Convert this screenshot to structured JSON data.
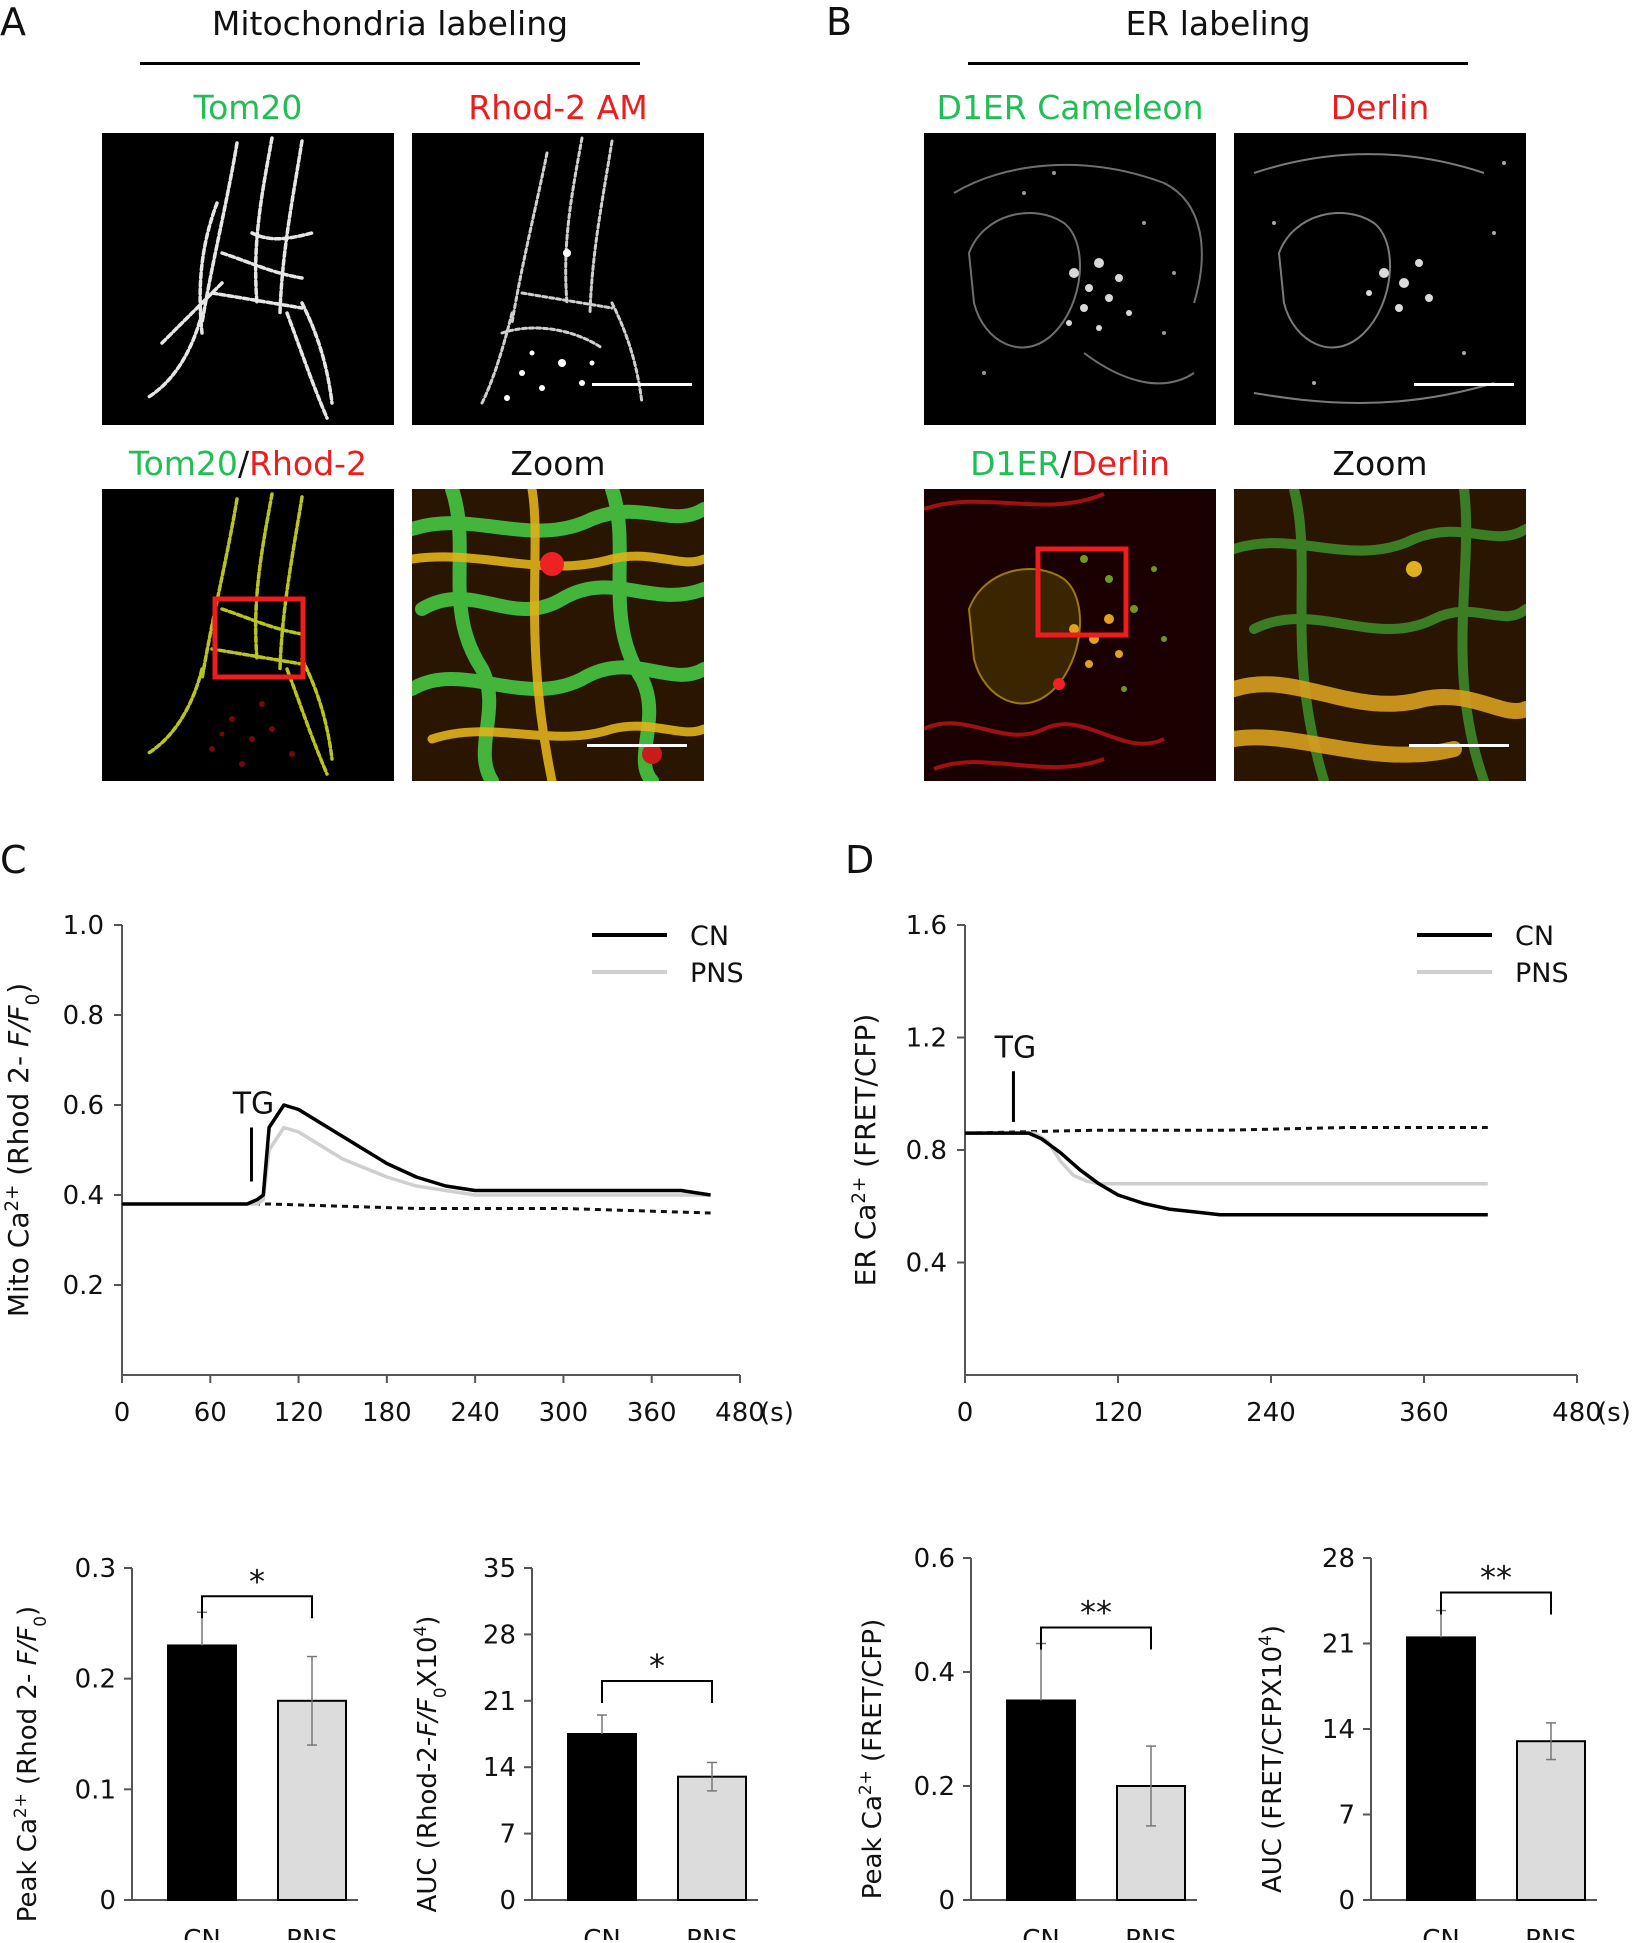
{
  "panel_A": {
    "letter": "A",
    "header": "Mitochondria labeling",
    "labels": {
      "tom20": "Tom20",
      "rhod2am": "Rhod-2 AM",
      "merge_green": "Tom20",
      "merge_sep": "/",
      "merge_red": "Rhod-2",
      "zoom": "Zoom"
    }
  },
  "panel_B": {
    "letter": "B",
    "header": "ER labeling",
    "labels": {
      "d1er": "D1ER Cameleon",
      "derlin": "Derlin",
      "merge_green": "D1ER",
      "merge_sep": "/",
      "merge_red": "Derlin",
      "zoom": "Zoom"
    }
  },
  "panel_C": {
    "letter": "C"
  },
  "panel_D": {
    "letter": "D"
  },
  "colors": {
    "green": "#1fbf55",
    "red": "#ee1c1c",
    "cn": "#000000",
    "pns": "#cfcfcf",
    "pns_bar": "#dcdcdc"
  },
  "chart_data": [
    {
      "id": "C-line",
      "type": "line",
      "ylabel": "Mito Ca2+ (Rhod 2- F/F0)",
      "xunit": "(s)",
      "xticks": [
        "0",
        "60",
        "120",
        "180",
        "240",
        "300",
        "360",
        "480"
      ],
      "yticks": [
        "0.2",
        "0.4",
        "0.6",
        "0.8",
        "1.0"
      ],
      "xlim": [
        0,
        420
      ],
      "ylim": [
        0,
        1.0
      ],
      "annotation": "TG",
      "legend": [
        "CN",
        "PNS"
      ],
      "series": [
        {
          "name": "CN",
          "x": [
            0,
            75,
            85,
            92,
            96,
            100,
            110,
            120,
            135,
            150,
            165,
            180,
            200,
            220,
            240,
            260,
            300,
            340,
            380,
            400
          ],
          "y": [
            0.38,
            0.38,
            0.38,
            0.39,
            0.4,
            0.55,
            0.6,
            0.59,
            0.56,
            0.53,
            0.5,
            0.47,
            0.44,
            0.42,
            0.41,
            0.41,
            0.41,
            0.41,
            0.41,
            0.4
          ]
        },
        {
          "name": "PNS",
          "x": [
            0,
            75,
            85,
            92,
            96,
            100,
            110,
            120,
            135,
            150,
            165,
            180,
            200,
            220,
            240,
            260,
            300,
            340,
            380,
            400
          ],
          "y": [
            0.38,
            0.38,
            0.38,
            0.38,
            0.39,
            0.5,
            0.55,
            0.54,
            0.51,
            0.48,
            0.46,
            0.44,
            0.42,
            0.41,
            0.4,
            0.4,
            0.4,
            0.4,
            0.4,
            0.4
          ]
        },
        {
          "name": "baseline",
          "x": [
            0,
            100,
            200,
            300,
            400
          ],
          "y": [
            0.38,
            0.38,
            0.37,
            0.37,
            0.36
          ]
        }
      ]
    },
    {
      "id": "D-line",
      "type": "line",
      "ylabel": "ER Ca2+ (FRET/CFP)",
      "xunit": "(s)",
      "xticks": [
        "0",
        "120",
        "240",
        "360",
        "480"
      ],
      "yticks": [
        "0.4",
        "0.8",
        "1.2",
        "1.6"
      ],
      "xlim": [
        0,
        480
      ],
      "ylim": [
        0,
        1.6
      ],
      "annotation": "TG",
      "legend": [
        "CN",
        "PNS"
      ],
      "series": [
        {
          "name": "CN",
          "x": [
            0,
            40,
            50,
            60,
            75,
            90,
            105,
            120,
            140,
            160,
            180,
            200,
            240,
            300,
            360,
            410
          ],
          "y": [
            0.86,
            0.86,
            0.86,
            0.84,
            0.79,
            0.73,
            0.68,
            0.64,
            0.61,
            0.59,
            0.58,
            0.57,
            0.57,
            0.57,
            0.57,
            0.57
          ]
        },
        {
          "name": "PNS",
          "x": [
            0,
            40,
            55,
            65,
            75,
            85,
            95,
            105,
            120,
            200,
            300,
            410
          ],
          "y": [
            0.86,
            0.86,
            0.86,
            0.83,
            0.76,
            0.71,
            0.69,
            0.68,
            0.68,
            0.68,
            0.68,
            0.68
          ]
        },
        {
          "name": "baseline",
          "x": [
            0,
            100,
            200,
            300,
            410
          ],
          "y": [
            0.86,
            0.87,
            0.87,
            0.88,
            0.88
          ]
        }
      ]
    },
    {
      "id": "C-peak",
      "type": "bar",
      "ylabel": "Peak Ca2+ (Rhod 2- F/F0)",
      "categories": [
        "CN",
        "PNS"
      ],
      "values": [
        0.23,
        0.18
      ],
      "errors": [
        0.03,
        0.04
      ],
      "yticks": [
        "0",
        "0.1",
        "0.2",
        "0.3"
      ],
      "ylim": [
        0,
        0.3
      ],
      "significance": "*"
    },
    {
      "id": "C-auc",
      "type": "bar",
      "ylabel": "AUC (Rhod-2-F/F0X104)",
      "categories": [
        "CN",
        "PNS"
      ],
      "values": [
        17.5,
        13
      ],
      "errors": [
        2,
        1.5
      ],
      "yticks": [
        "0",
        "7",
        "14",
        "21",
        "28",
        "35"
      ],
      "ylim": [
        0,
        35
      ],
      "significance": "*"
    },
    {
      "id": "D-peak",
      "type": "bar",
      "ylabel": "Peak Ca2+ (FRET/CFP)",
      "categories": [
        "CN",
        "PNS"
      ],
      "values": [
        0.35,
        0.2
      ],
      "errors": [
        0.1,
        0.07
      ],
      "yticks": [
        "0",
        "0.2",
        "0.4",
        "0.6"
      ],
      "ylim": [
        0,
        0.6
      ],
      "significance": "**"
    },
    {
      "id": "D-auc",
      "type": "bar",
      "ylabel": "AUC (FRET/CFPX104)",
      "categories": [
        "CN",
        "PNS"
      ],
      "values": [
        21.5,
        13
      ],
      "errors": [
        2.2,
        1.5
      ],
      "yticks": [
        "0",
        "7",
        "14",
        "21",
        "28"
      ],
      "ylim": [
        0,
        28
      ],
      "significance": "**"
    }
  ]
}
